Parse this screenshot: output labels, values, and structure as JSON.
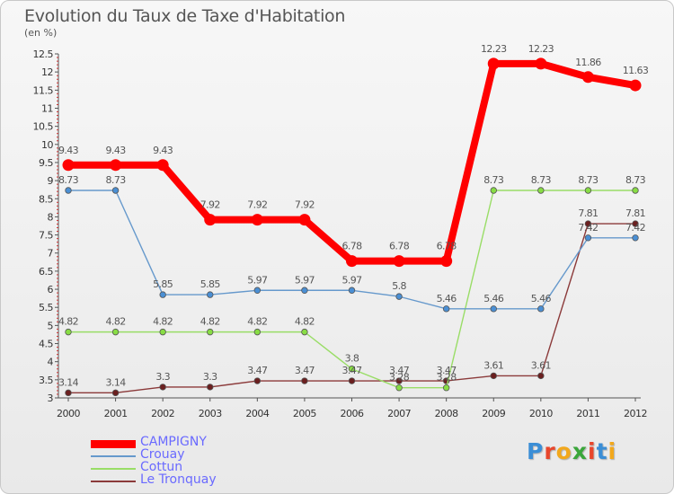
{
  "title": "Evolution du Taux de Taxe d'Habitation",
  "subtitle": "(en %)",
  "brand": {
    "text": "Proxiti",
    "letters": [
      {
        "c": "P",
        "color": "#3b8ed6"
      },
      {
        "c": "r",
        "color": "#e8462b"
      },
      {
        "c": "o",
        "color": "#f2a81d"
      },
      {
        "c": "x",
        "color": "#3aa63a"
      },
      {
        "c": "i",
        "color": "#e8462b"
      },
      {
        "c": "t",
        "color": "#3b8ed6"
      },
      {
        "c": "i",
        "color": "#f2a81d"
      }
    ]
  },
  "chart_data": {
    "type": "line",
    "title": "Evolution du Taux de Taxe d'Habitation",
    "subtitle": "(en %)",
    "xlabel": "",
    "ylabel": "",
    "categories": [
      "2000",
      "2001",
      "2002",
      "2003",
      "2004",
      "2005",
      "2006",
      "2007",
      "2008",
      "2009",
      "2010",
      "2011",
      "2012"
    ],
    "ylim": [
      3,
      12.5
    ],
    "yticks": [
      3,
      3.5,
      4,
      4.5,
      5,
      5.5,
      6,
      6.5,
      7,
      7.5,
      8,
      8.5,
      9,
      9.5,
      10,
      10.5,
      11,
      11.5,
      12,
      12.5
    ],
    "grid": false,
    "legend_position": "bottom-left",
    "series": [
      {
        "name": "CAMPIGNY",
        "color": "#ff0000",
        "label_color": "#6a6aff",
        "marker_fill": "#ff0000",
        "thick": true,
        "values": [
          9.43,
          9.43,
          9.43,
          7.92,
          7.92,
          7.92,
          6.78,
          6.78,
          6.78,
          12.23,
          12.23,
          11.86,
          11.63
        ],
        "labels": [
          "9.43",
          "9.43",
          "9.43",
          "7.92",
          "7.92",
          "7.92",
          "6.78",
          "6.78",
          "6.78",
          "12.23",
          "12.23",
          "11.86",
          "11.63"
        ]
      },
      {
        "name": "Crouay",
        "color": "#6699cc",
        "label_color": "#6699cc",
        "marker_fill": "#4a8fd4",
        "thick": false,
        "values": [
          8.73,
          8.73,
          5.85,
          5.85,
          5.97,
          5.97,
          5.97,
          5.8,
          5.46,
          5.46,
          5.46,
          7.42,
          7.42
        ],
        "labels": [
          "8.73",
          "8.73",
          "5.85",
          "5.85",
          "5.97",
          "5.97",
          "5.97",
          "5.8",
          "5.46",
          "5.46",
          "5.46",
          "7.42",
          "7.42"
        ]
      },
      {
        "name": "Cottun",
        "color": "#99dd66",
        "label_color": "#99dd66",
        "marker_fill": "#88dd44",
        "thick": false,
        "values": [
          4.82,
          4.82,
          4.82,
          4.82,
          4.82,
          4.82,
          3.8,
          3.28,
          3.28,
          8.73,
          8.73,
          8.73,
          8.73
        ],
        "labels": [
          "4.82",
          "4.82",
          "4.82",
          "4.82",
          "4.82",
          "4.82",
          "3.8",
          "3.28",
          "3.28",
          "8.73",
          "8.73",
          "8.73",
          "8.73"
        ]
      },
      {
        "name": "Le Tronquay",
        "color": "#8b3a3a",
        "label_color": "#8b3a3a",
        "marker_fill": "#6b1f1f",
        "thick": false,
        "values": [
          3.14,
          3.14,
          3.3,
          3.3,
          3.47,
          3.47,
          3.47,
          3.47,
          3.47,
          3.61,
          3.61,
          7.81,
          7.81
        ],
        "labels": [
          "3.14",
          "3.14",
          "3.3",
          "3.3",
          "3.47",
          "3.47",
          "3.47",
          "3.47",
          "3.47",
          "3.61",
          "3.61",
          "7.81",
          "7.81"
        ]
      }
    ]
  }
}
